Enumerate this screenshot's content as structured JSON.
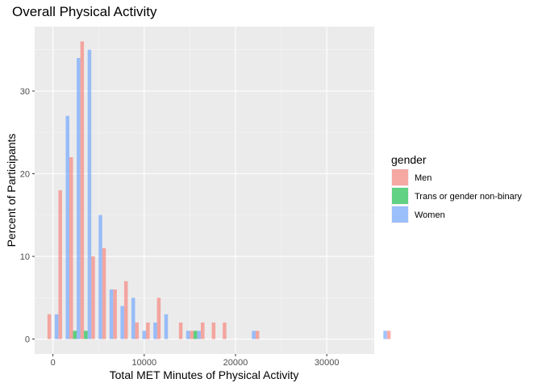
{
  "chart_data": {
    "type": "bar",
    "title": "Overall Physical Activity",
    "xlabel": "Total MET Minutes of Physical Activity",
    "ylabel": "Percent of Participants",
    "xlim": [
      -2000,
      35200
    ],
    "ylim": [
      -1.8,
      37.8
    ],
    "xticks": [
      0,
      10000,
      20000,
      30000
    ],
    "xtick_labels": [
      "0",
      "10000",
      "20000",
      "30000"
    ],
    "yticks": [
      0,
      10,
      20,
      30
    ],
    "ytick_labels": [
      "0",
      "10",
      "20",
      "30"
    ],
    "grid": true,
    "legend_position": "right",
    "legend_title": "gender",
    "bin_width": 1200,
    "series": [
      {
        "name": "Men",
        "color": "#F8766D",
        "values": [
          3,
          18,
          22,
          36,
          10,
          11,
          6,
          7,
          2,
          2,
          5,
          0,
          2,
          1,
          2,
          2,
          2,
          0,
          0,
          1,
          0,
          0,
          0,
          0,
          0,
          0,
          0,
          0,
          0,
          0,
          0,
          1
        ]
      },
      {
        "name": "Trans or gender non-binary",
        "color": "#00BA38",
        "values": [
          0,
          0,
          1,
          1,
          0,
          0,
          0,
          0,
          0,
          0,
          0,
          0,
          0,
          1,
          0,
          0,
          0,
          0,
          0,
          0,
          0,
          0,
          0,
          0,
          0,
          0,
          0,
          0,
          0,
          0,
          0,
          0
        ]
      },
      {
        "name": "Women",
        "color": "#619CFF",
        "values": [
          3,
          27,
          34,
          35,
          15,
          6,
          4,
          5,
          1,
          2,
          3,
          0,
          1,
          1,
          0,
          0,
          0,
          0,
          1,
          0,
          0,
          0,
          0,
          0,
          0,
          0,
          0,
          0,
          0,
          0,
          1,
          0
        ]
      }
    ]
  }
}
